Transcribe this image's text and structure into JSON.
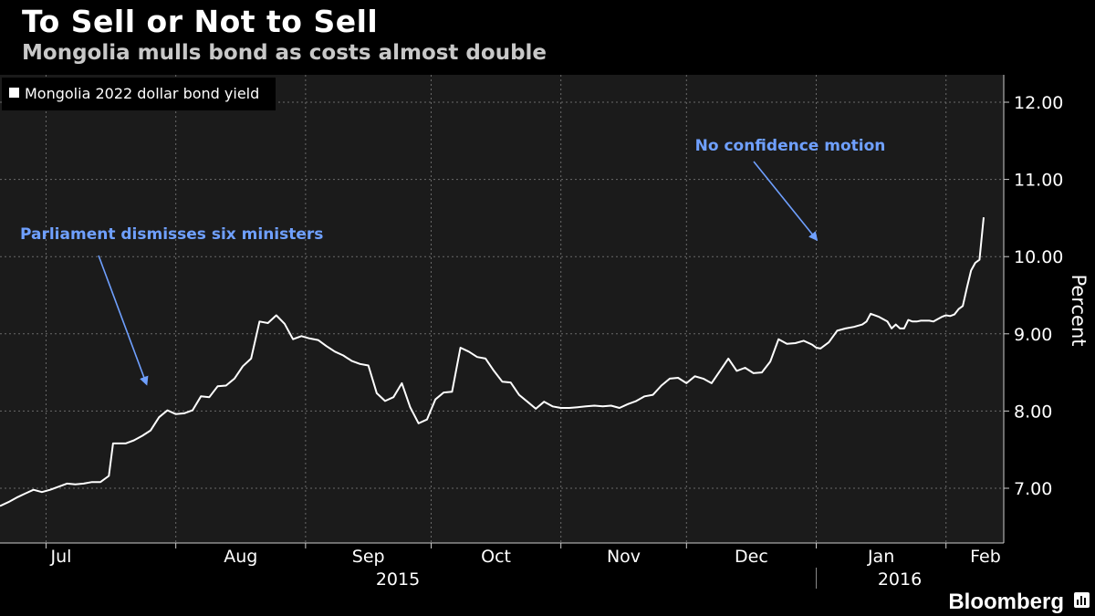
{
  "header": {
    "title": "To Sell or Not to Sell",
    "subtitle": "Mongolia mulls bond as costs almost double"
  },
  "footer": {
    "brand": "Bloomberg",
    "brand_icon": "bloomberg-chart-icon"
  },
  "colors": {
    "background": "#000000",
    "plot_background": "#1b1b1b",
    "line": "#ffffff",
    "grid": "#6a6a6a",
    "annotation": "#6fa0ff",
    "axis_text": "#ffffff"
  },
  "chart_data": {
    "type": "line",
    "title": "To Sell or Not to Sell",
    "subtitle": "Mongolia mulls bond as costs almost double",
    "ylabel": "Percent",
    "ylim": [
      6.35,
      12.35
    ],
    "y_ticks": [
      7,
      8,
      9,
      10,
      11,
      12
    ],
    "y_tick_labels": [
      "7.00",
      "8.00",
      "9.00",
      "10.00",
      "11.00",
      "12.00"
    ],
    "x_range": [
      "2015-06-20",
      "2016-02-10"
    ],
    "x_ticks": [
      {
        "date": "2015-07-01",
        "label": "Jul"
      },
      {
        "date": "2015-08-01",
        "label": "Aug"
      },
      {
        "date": "2015-09-01",
        "label": "Sep"
      },
      {
        "date": "2015-10-01",
        "label": "Oct"
      },
      {
        "date": "2015-11-01",
        "label": "Nov"
      },
      {
        "date": "2015-12-01",
        "label": "Dec"
      },
      {
        "date": "2016-01-01",
        "label": "Jan"
      },
      {
        "date": "2016-02-01",
        "label": "Feb"
      }
    ],
    "year_labels": [
      {
        "label": "2015",
        "from": "2015-06-20",
        "to": "2015-12-31"
      },
      {
        "label": "2016",
        "from": "2016-01-01",
        "to": "2016-02-10"
      }
    ],
    "grid": true,
    "legend": {
      "placement": "top-left",
      "entries": [
        "Mongolia 2022 dollar bond yield"
      ]
    },
    "series": [
      {
        "name": "Mongolia 2022 dollar bond yield",
        "points": [
          [
            "2015-06-20",
            6.77
          ],
          [
            "2015-06-22",
            6.82
          ],
          [
            "2015-06-24",
            6.88
          ],
          [
            "2015-06-26",
            6.93
          ],
          [
            "2015-06-28",
            6.98
          ],
          [
            "2015-06-30",
            6.95
          ],
          [
            "2015-07-02",
            6.98
          ],
          [
            "2015-07-04",
            7.02
          ],
          [
            "2015-07-06",
            7.06
          ],
          [
            "2015-07-08",
            7.05
          ],
          [
            "2015-07-10",
            7.06
          ],
          [
            "2015-07-12",
            7.08
          ],
          [
            "2015-07-14",
            7.08
          ],
          [
            "2015-07-16",
            7.16
          ],
          [
            "2015-07-17",
            7.58
          ],
          [
            "2015-07-20",
            7.58
          ],
          [
            "2015-07-22",
            7.62
          ],
          [
            "2015-07-24",
            7.68
          ],
          [
            "2015-07-26",
            7.75
          ],
          [
            "2015-07-28",
            7.92
          ],
          [
            "2015-07-30",
            8.01
          ],
          [
            "2015-08-01",
            7.96
          ],
          [
            "2015-08-03",
            7.97
          ],
          [
            "2015-08-05",
            8.01
          ],
          [
            "2015-08-07",
            8.19
          ],
          [
            "2015-08-09",
            8.18
          ],
          [
            "2015-08-11",
            8.32
          ],
          [
            "2015-08-13",
            8.33
          ],
          [
            "2015-08-15",
            8.42
          ],
          [
            "2015-08-17",
            8.58
          ],
          [
            "2015-08-19",
            8.68
          ],
          [
            "2015-08-21",
            9.16
          ],
          [
            "2015-08-23",
            9.14
          ],
          [
            "2015-08-25",
            9.24
          ],
          [
            "2015-08-27",
            9.13
          ],
          [
            "2015-08-29",
            8.93
          ],
          [
            "2015-08-31",
            8.97
          ],
          [
            "2015-09-02",
            8.94
          ],
          [
            "2015-09-04",
            8.92
          ],
          [
            "2015-09-06",
            8.84
          ],
          [
            "2015-09-08",
            8.77
          ],
          [
            "2015-09-10",
            8.72
          ],
          [
            "2015-09-12",
            8.65
          ],
          [
            "2015-09-14",
            8.61
          ],
          [
            "2015-09-16",
            8.59
          ],
          [
            "2015-09-18",
            8.23
          ],
          [
            "2015-09-20",
            8.13
          ],
          [
            "2015-09-22",
            8.18
          ],
          [
            "2015-09-24",
            8.36
          ],
          [
            "2015-09-26",
            8.05
          ],
          [
            "2015-09-28",
            7.84
          ],
          [
            "2015-09-30",
            7.89
          ],
          [
            "2015-10-02",
            8.15
          ],
          [
            "2015-10-04",
            8.24
          ],
          [
            "2015-10-06",
            8.25
          ],
          [
            "2015-10-08",
            8.82
          ],
          [
            "2015-10-10",
            8.77
          ],
          [
            "2015-10-12",
            8.7
          ],
          [
            "2015-10-14",
            8.68
          ],
          [
            "2015-10-16",
            8.52
          ],
          [
            "2015-10-18",
            8.38
          ],
          [
            "2015-10-20",
            8.37
          ],
          [
            "2015-10-22",
            8.21
          ],
          [
            "2015-10-24",
            8.12
          ],
          [
            "2015-10-26",
            8.03
          ],
          [
            "2015-10-28",
            8.12
          ],
          [
            "2015-10-30",
            8.06
          ],
          [
            "2015-11-01",
            8.04
          ],
          [
            "2015-11-03",
            8.04
          ],
          [
            "2015-11-05",
            8.05
          ],
          [
            "2015-11-07",
            8.06
          ],
          [
            "2015-11-09",
            8.07
          ],
          [
            "2015-11-11",
            8.06
          ],
          [
            "2015-11-13",
            8.07
          ],
          [
            "2015-11-15",
            8.04
          ],
          [
            "2015-11-17",
            8.09
          ],
          [
            "2015-11-19",
            8.13
          ],
          [
            "2015-11-21",
            8.19
          ],
          [
            "2015-11-23",
            8.21
          ],
          [
            "2015-11-25",
            8.33
          ],
          [
            "2015-11-27",
            8.42
          ],
          [
            "2015-11-29",
            8.43
          ],
          [
            "2015-12-01",
            8.36
          ],
          [
            "2015-12-03",
            8.45
          ],
          [
            "2015-12-05",
            8.42
          ],
          [
            "2015-12-07",
            8.36
          ],
          [
            "2015-12-09",
            8.52
          ],
          [
            "2015-12-11",
            8.68
          ],
          [
            "2015-12-13",
            8.52
          ],
          [
            "2015-12-15",
            8.56
          ],
          [
            "2015-12-17",
            8.49
          ],
          [
            "2015-12-19",
            8.5
          ],
          [
            "2015-12-21",
            8.64
          ],
          [
            "2015-12-23",
            8.93
          ],
          [
            "2015-12-25",
            8.87
          ],
          [
            "2015-12-27",
            8.88
          ],
          [
            "2015-12-29",
            8.91
          ],
          [
            "2015-12-31",
            8.86
          ],
          [
            "2016-01-01",
            8.82
          ],
          [
            "2016-01-02",
            8.81
          ],
          [
            "2016-01-04",
            8.89
          ],
          [
            "2016-01-06",
            9.04
          ],
          [
            "2016-01-08",
            9.07
          ],
          [
            "2016-01-10",
            9.09
          ],
          [
            "2016-01-12",
            9.12
          ],
          [
            "2016-01-13",
            9.16
          ],
          [
            "2016-01-14",
            9.26
          ],
          [
            "2016-01-16",
            9.22
          ],
          [
            "2016-01-18",
            9.16
          ],
          [
            "2016-01-19",
            9.07
          ],
          [
            "2016-01-20",
            9.12
          ],
          [
            "2016-01-21",
            9.07
          ],
          [
            "2016-01-22",
            9.07
          ],
          [
            "2016-01-23",
            9.18
          ],
          [
            "2016-01-24",
            9.16
          ],
          [
            "2016-01-25",
            9.16
          ],
          [
            "2016-01-26",
            9.17
          ],
          [
            "2016-01-27",
            9.17
          ],
          [
            "2016-01-28",
            9.17
          ],
          [
            "2016-01-29",
            9.16
          ],
          [
            "2016-01-30",
            9.19
          ],
          [
            "2016-01-31",
            9.22
          ],
          [
            "2016-02-01",
            9.24
          ],
          [
            "2016-02-02",
            9.23
          ],
          [
            "2016-02-03",
            9.25
          ],
          [
            "2016-02-04",
            9.32
          ],
          [
            "2016-02-05",
            9.36
          ],
          [
            "2016-02-06",
            9.6
          ],
          [
            "2016-02-07",
            9.82
          ],
          [
            "2016-02-08",
            9.92
          ],
          [
            "2016-02-09",
            9.96
          ],
          [
            "2016-02-10",
            10.51
          ]
        ]
      }
    ],
    "annotations": [
      {
        "text": "Parliament dismisses six ministers",
        "point_date": "2015-07-25",
        "point_value": 8.35
      },
      {
        "text": "No confidence motion",
        "point_date": "2015-12-31",
        "point_value": 10.22
      }
    ]
  }
}
